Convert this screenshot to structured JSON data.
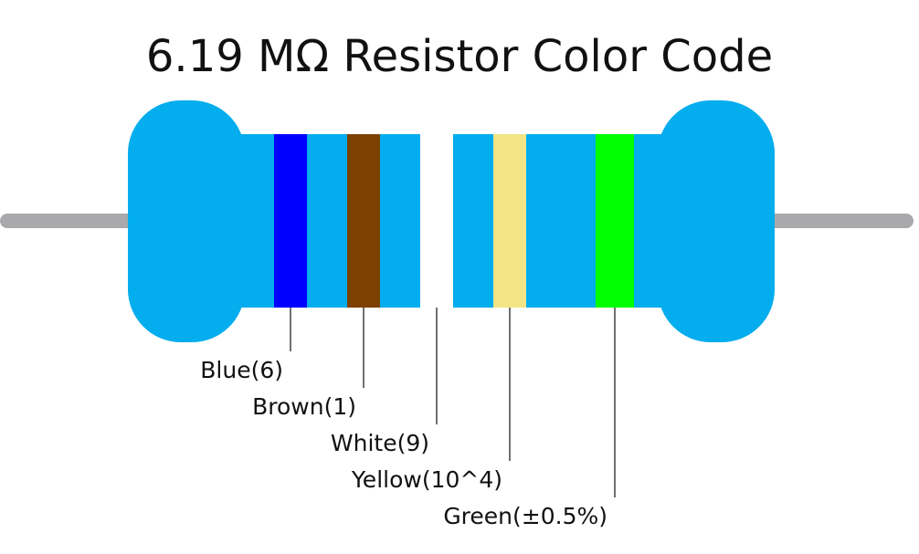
{
  "title": "6.19 MΩ Resistor Color Code",
  "colors": {
    "body": "#03adee",
    "lead": "#a9a9ab",
    "leader_line": "#111111"
  },
  "bands": [
    {
      "label": "Blue(6)",
      "color": "#0000ff"
    },
    {
      "label": "Brown(1)",
      "color": "#7c4100"
    },
    {
      "label": "White(9)",
      "color": "#ffffff"
    },
    {
      "label": "Yellow(10^4)",
      "color": "#f2e585"
    },
    {
      "label": "Green(±0.5%)",
      "color": "#00ff00"
    }
  ]
}
